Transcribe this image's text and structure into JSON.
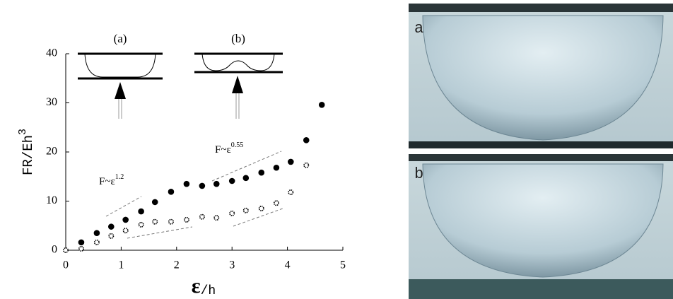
{
  "chart_data": {
    "type": "scatter",
    "y_label": "FR/Eh",
    "y_label_exponent": "3",
    "x_label_symbol": "ε",
    "x_label_rest": "/h",
    "xlim": [
      0,
      5
    ],
    "xticks": [
      0,
      1,
      2,
      3,
      4,
      5
    ],
    "ylim": [
      0,
      40
    ],
    "yticks": [
      0,
      10,
      20,
      30,
      40
    ],
    "series": [
      {
        "color": "#000000",
        "marker": "filled",
        "x": [
          0.28,
          0.56,
          0.82,
          1.08,
          1.36,
          1.61,
          1.9,
          2.18,
          2.46,
          2.72,
          3.0,
          3.25,
          3.53,
          3.8,
          4.06,
          4.34,
          4.62
        ],
        "values": [
          1.6,
          3.5,
          4.8,
          6.2,
          7.9,
          9.8,
          11.9,
          13.5,
          13.1,
          13.5,
          14.1,
          14.7,
          15.8,
          16.8,
          18.0,
          22.4,
          29.6
        ]
      },
      {
        "color": "#000000",
        "marker": "open",
        "x": [
          0,
          0.28,
          0.56,
          0.82,
          1.08,
          1.36,
          1.61,
          1.9,
          2.18,
          2.46,
          2.72,
          3.0,
          3.25,
          3.53,
          3.8,
          4.06,
          4.34
        ],
        "values": [
          0,
          0.3,
          1.6,
          2.9,
          4.0,
          5.2,
          5.8,
          5.8,
          6.2,
          6.8,
          6.6,
          7.5,
          8.1,
          8.5,
          9.6,
          11.8,
          17.3
        ]
      }
    ],
    "annotations": [
      {
        "text": "F~ε",
        "exponent": "1.2"
      },
      {
        "text": "F~ε",
        "exponent": "0.55"
      }
    ],
    "insets": [
      "(a)",
      "(b)"
    ],
    "photo_labels": [
      "a",
      "b"
    ]
  }
}
